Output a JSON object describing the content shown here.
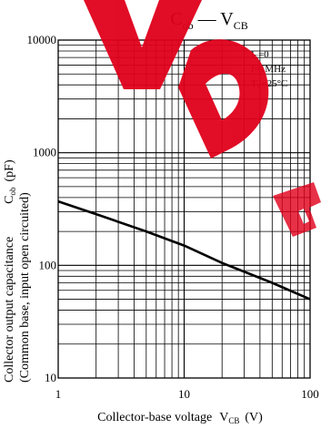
{
  "colors": {
    "background": "#ffffff",
    "ink": "#000000",
    "watermark": "#e0001b"
  },
  "watermark": {
    "text": "Discontinued",
    "kind": "watermark"
  },
  "chart_data": {
    "type": "line",
    "title": {
      "main": "C",
      "main_sub": "ob",
      "dash": " — ",
      "var": "V",
      "var_sub": "CB"
    },
    "ylabel": {
      "line1_main": "Collector output capacitance",
      "line1_sym": "C",
      "line1_sub": "ob",
      "line1_unit": "(pF)",
      "line2": "(Common base, input open circuited)"
    },
    "xlabel": {
      "main": "Collector-base voltage",
      "sym": "V",
      "sub": "CB",
      "unit": "(V)"
    },
    "x_scale": "log",
    "y_scale": "log",
    "xlim": [
      1,
      100
    ],
    "ylim": [
      10,
      10000
    ],
    "grid": true,
    "x_ticks": [
      {
        "value": 1,
        "label": "1"
      },
      {
        "value": 10,
        "label": "10"
      },
      {
        "value": 100,
        "label": "100"
      }
    ],
    "y_ticks": [
      {
        "value": 10,
        "label": "10"
      },
      {
        "value": 100,
        "label": "100"
      },
      {
        "value": 1000,
        "label": "1000"
      },
      {
        "value": 10000,
        "label": "10000"
      }
    ],
    "conditions": [
      {
        "pre": "I",
        "sub": "E",
        "post": "=0"
      },
      {
        "pre": "f=1MHz",
        "sub": "",
        "post": ""
      },
      {
        "pre": "T",
        "sub": "C",
        "post": "=25°C"
      }
    ],
    "series": [
      {
        "x": [
          1,
          2,
          5,
          10,
          20,
          50,
          100
        ],
        "y": [
          370,
          285,
          200,
          150,
          105,
          70,
          50
        ]
      }
    ]
  }
}
